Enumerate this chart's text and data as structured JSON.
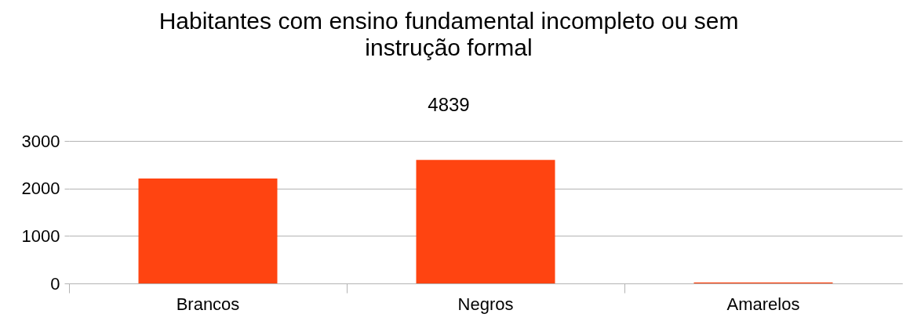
{
  "chart_data": {
    "type": "bar",
    "title": "Habitantes com ensino fundamental incompleto ou sem\ninstrução formal",
    "subtitle": "4839",
    "categories": [
      "Brancos",
      "Negros",
      "Amarelos"
    ],
    "values": [
      2210,
      2600,
      20
    ],
    "color": "#ff4411",
    "ylim": [
      0,
      3000
    ],
    "yticks": [
      0,
      1000,
      2000,
      3000
    ],
    "grid": "y"
  }
}
